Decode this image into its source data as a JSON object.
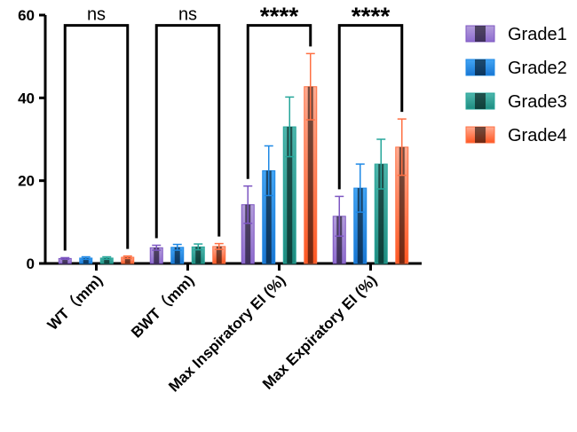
{
  "chart_data": {
    "type": "bar",
    "title": "",
    "xlabel": "",
    "ylabel": "",
    "ylim": [
      0,
      60
    ],
    "yticks": [
      0,
      20,
      40,
      60
    ],
    "grid": false,
    "legend_position": "right",
    "categories": [
      "WT（mm)",
      "BWT（mm)",
      "Max Inspiratory EI (%)",
      "Max Expiratory EI (%)"
    ],
    "series": [
      {
        "name": "Grade1",
        "color": "#7E57C2",
        "values": [
          1.2,
          3.8,
          14.2,
          11.4
        ],
        "errors": [
          0.2,
          0.6,
          4.5,
          4.8
        ]
      },
      {
        "name": "Grade2",
        "color": "#1E88E5",
        "values": [
          1.3,
          3.9,
          22.4,
          18.2
        ],
        "errors": [
          0.3,
          0.7,
          6.0,
          5.8
        ]
      },
      {
        "name": "Grade3",
        "color": "#26A69A",
        "values": [
          1.3,
          4.0,
          33.0,
          24.0
        ],
        "errors": [
          0.3,
          0.7,
          7.2,
          6.0
        ]
      },
      {
        "name": "Grade4",
        "color": "#FF7043",
        "values": [
          1.5,
          4.1,
          42.7,
          28.1
        ],
        "errors": [
          0.3,
          0.7,
          8.0,
          6.8
        ]
      }
    ],
    "significance": [
      {
        "label": "ns",
        "y": 57.5
      },
      {
        "label": "ns",
        "y": 57.5
      },
      {
        "label": "****",
        "y": 57.5
      },
      {
        "label": "****",
        "y": 57.5
      }
    ]
  }
}
